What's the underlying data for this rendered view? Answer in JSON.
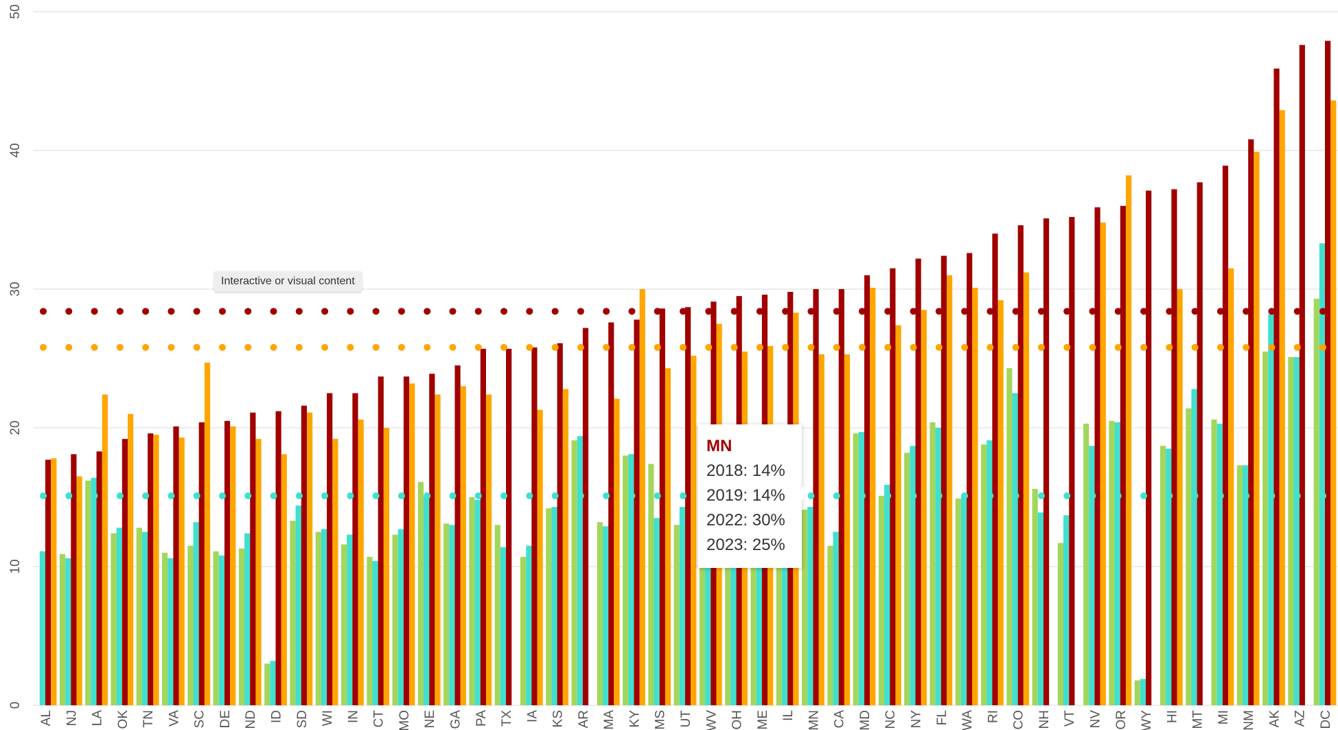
{
  "chart_data": {
    "type": "bar",
    "categories": [
      "AL",
      "NJ",
      "LA",
      "OK",
      "TN",
      "VA",
      "SC",
      "DE",
      "ND",
      "ID",
      "SD",
      "WI",
      "IN",
      "CT",
      "MO",
      "NE",
      "GA",
      "PA",
      "TX",
      "IA",
      "KS",
      "AR",
      "MA",
      "KY",
      "MS",
      "UT",
      "WV",
      "OH",
      "ME",
      "IL",
      "MN",
      "CA",
      "MD",
      "NC",
      "NY",
      "FL",
      "WA",
      "RI",
      "CO",
      "NH",
      "VT",
      "NV",
      "OR",
      "WY",
      "HI",
      "MT",
      "MI",
      "NM",
      "AK",
      "AZ",
      "DC"
    ],
    "series": [
      {
        "name": "2018",
        "color": "#a3d65c",
        "values": [
          null,
          10.9,
          16.2,
          12.4,
          12.8,
          11.0,
          11.5,
          11.1,
          11.3,
          3.0,
          13.3,
          12.5,
          11.6,
          10.7,
          12.3,
          16.1,
          13.1,
          15.0,
          13.0,
          10.7,
          14.2,
          19.1,
          13.2,
          18.0,
          17.4,
          13.0,
          13.0,
          14.0,
          14.0,
          13.5,
          14.1,
          11.5,
          19.6,
          15.1,
          18.2,
          20.4,
          14.9,
          18.8,
          24.3,
          15.6,
          11.7,
          20.3,
          20.5,
          1.8,
          18.7,
          21.4,
          20.6,
          17.3,
          25.5,
          25.1,
          29.3
        ]
      },
      {
        "name": "2019",
        "color": "#40e0d0",
        "average": 15.1,
        "values": [
          11.1,
          10.6,
          16.4,
          12.8,
          12.5,
          10.6,
          13.2,
          10.8,
          12.4,
          3.2,
          14.4,
          12.7,
          12.3,
          10.4,
          12.7,
          15.0,
          13.0,
          14.8,
          11.4,
          11.5,
          14.3,
          19.4,
          12.9,
          18.1,
          13.5,
          14.3,
          13.0,
          14.0,
          15.0,
          14.0,
          14.3,
          12.5,
          19.7,
          15.9,
          18.7,
          20.0,
          15.1,
          19.1,
          22.5,
          13.9,
          13.7,
          18.7,
          20.4,
          1.9,
          18.5,
          22.8,
          20.3,
          17.3,
          28.2,
          25.1,
          33.3
        ]
      },
      {
        "name": "2022",
        "color": "#a00000",
        "average": 28.4,
        "values": [
          17.7,
          18.1,
          18.3,
          19.2,
          19.6,
          20.1,
          20.4,
          20.5,
          21.1,
          21.2,
          21.6,
          22.5,
          22.5,
          23.7,
          23.7,
          23.9,
          24.5,
          25.7,
          25.7,
          25.8,
          26.1,
          27.2,
          27.6,
          27.8,
          28.6,
          28.7,
          29.1,
          29.5,
          29.6,
          29.8,
          30.0,
          30.0,
          31.0,
          31.5,
          32.2,
          32.4,
          32.6,
          34.0,
          34.6,
          35.1,
          35.2,
          35.9,
          36.0,
          37.1,
          37.2,
          37.7,
          38.9,
          40.8,
          45.9,
          47.6,
          47.9
        ]
      },
      {
        "name": "2023",
        "color": "#ffa500",
        "average": 25.8,
        "values": [
          17.8,
          16.5,
          22.4,
          21.0,
          19.5,
          19.3,
          24.7,
          20.1,
          19.2,
          18.1,
          21.1,
          19.2,
          20.6,
          20.0,
          23.2,
          22.4,
          23.0,
          22.4,
          null,
          21.3,
          22.8,
          null,
          22.1,
          30.0,
          24.3,
          25.2,
          27.5,
          25.5,
          25.9,
          28.3,
          25.3,
          25.3,
          30.1,
          27.4,
          28.5,
          31.0,
          30.1,
          29.2,
          31.2,
          null,
          null,
          34.8,
          38.2,
          null,
          30.0,
          null,
          31.5,
          39.9,
          42.9,
          null,
          43.6
        ]
      }
    ],
    "ylim": [
      0,
      50
    ],
    "yticks": [
      0,
      10,
      20,
      30,
      40,
      50
    ],
    "grid": true,
    "tooltip": {
      "title": "MN",
      "lines": [
        "2018: 14%",
        "2019: 14%",
        "2022: 30%",
        "2023: 25%"
      ]
    },
    "badge": "Interactive or visual content"
  }
}
